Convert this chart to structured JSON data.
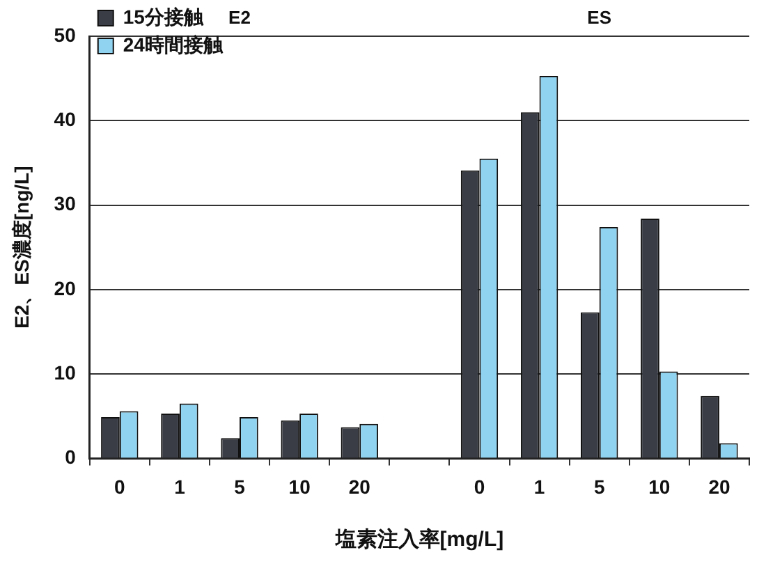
{
  "chart_data": {
    "type": "bar",
    "ylabel": "E2、ES濃度[ng/L]",
    "xlabel": "塩素注入率[mg/L]",
    "categories": [
      "0",
      "1",
      "5",
      "10",
      "20",
      null,
      "0",
      "1",
      "5",
      "10",
      "20"
    ],
    "series": [
      {
        "name": "15分接触",
        "color": "#3a3d45",
        "values": [
          4.9,
          5.3,
          2.4,
          4.5,
          3.7,
          null,
          34.1,
          41.0,
          17.3,
          28.4,
          7.4
        ]
      },
      {
        "name": "24時間接触",
        "color": "#8fd3f0",
        "values": [
          5.6,
          6.5,
          4.9,
          5.3,
          4.1,
          null,
          35.5,
          45.3,
          27.4,
          10.3,
          1.8
        ]
      }
    ],
    "annotations": [
      "E2",
      "ES"
    ],
    "ylim": [
      0,
      50
    ],
    "yticks": [
      0,
      10,
      20,
      30,
      40,
      50
    ],
    "grid": "y",
    "legend": "top left"
  }
}
